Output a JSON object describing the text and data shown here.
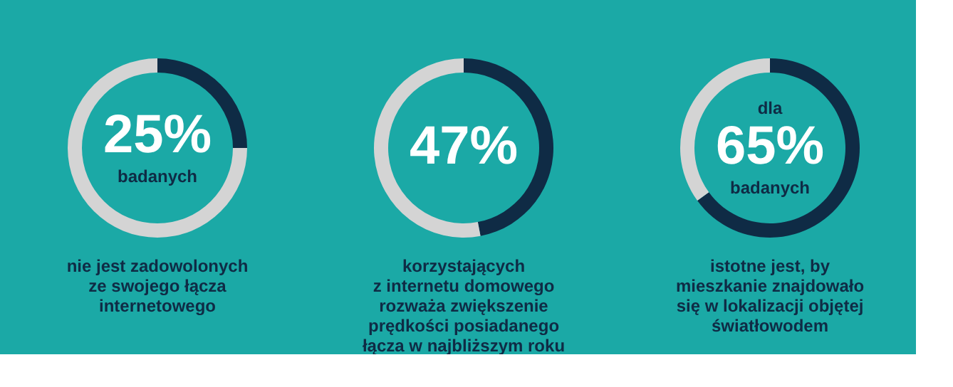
{
  "chart_data": [
    {
      "type": "donut",
      "categories": [
        null,
        null
      ],
      "values": [
        25,
        75
      ],
      "colors": [
        "#0f2b45",
        "#d4d4d4"
      ],
      "value_labels": [
        "25%",
        null
      ],
      "annotations": [
        "badanych",
        "nie jest zadowolonych\nze swojego łącza\ninternetowego"
      ]
    },
    {
      "type": "donut",
      "categories": [
        null,
        null
      ],
      "values": [
        47,
        53
      ],
      "colors": [
        "#0f2b45",
        "#d4d4d4"
      ],
      "value_labels": [
        "47%",
        null
      ],
      "annotations": [
        "korzystających\nz internetu domowego\nrozważa zwiększenie\nprędkości posiadanego\nłącza w najbliższym roku"
      ]
    },
    {
      "type": "donut",
      "categories": [
        null,
        null
      ],
      "values": [
        65,
        35
      ],
      "colors": [
        "#0f2b45",
        "#d4d4d4"
      ],
      "value_labels": [
        "65%",
        null
      ],
      "annotations": [
        "dla",
        "badanych",
        "istotne jest, by\nmieszkanie znajdowało\nsię w lokalizacji objętej\nświatłowodem"
      ]
    }
  ]
}
